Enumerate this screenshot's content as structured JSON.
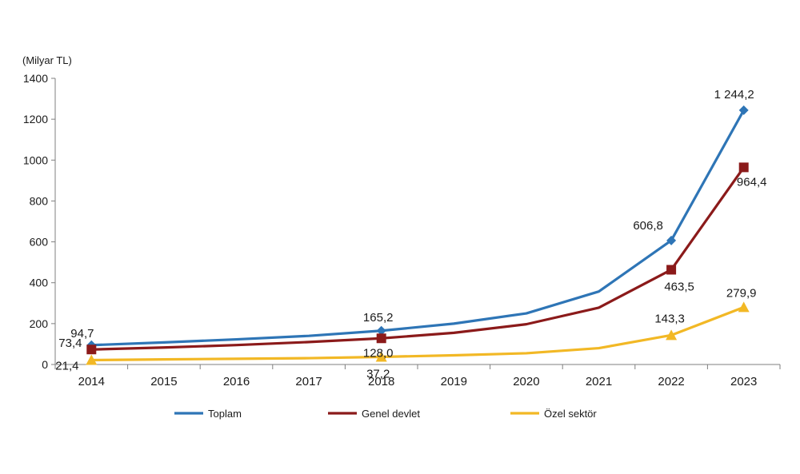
{
  "chart_data": {
    "type": "line",
    "title": "",
    "unit_label": "(Milyar  TL)",
    "xlabel": "",
    "ylabel": "",
    "x": [
      "2014",
      "2015",
      "2016",
      "2017",
      "2018",
      "2019",
      "2020",
      "2021",
      "2022",
      "2023"
    ],
    "ylim": [
      0,
      1400
    ],
    "yticks": [
      0,
      200,
      400,
      600,
      800,
      1000,
      1200,
      1400
    ],
    "grid": false,
    "legend_position": "bottom",
    "series": [
      {
        "name": "Toplam",
        "color": "#2e75b6",
        "marker": "diamond",
        "values": [
          94.7,
          108,
          123,
          140,
          165.2,
          200,
          250,
          357,
          606.8,
          1244.2
        ]
      },
      {
        "name": "Genel devlet",
        "color": "#8b1a1a",
        "marker": "square",
        "values": [
          73.4,
          83,
          95,
          110,
          128.0,
          155,
          197,
          278,
          463.5,
          964.4
        ]
      },
      {
        "name": "Özel sektör",
        "color": "#f2b825",
        "marker": "triangle",
        "values": [
          21.4,
          25,
          28,
          31,
          37.2,
          45,
          55,
          80,
          143.3,
          279.9
        ]
      }
    ],
    "data_labels": [
      {
        "series": 0,
        "index": 0,
        "text": "94,7"
      },
      {
        "series": 1,
        "index": 0,
        "text": "73,4"
      },
      {
        "series": 2,
        "index": 0,
        "text": "21,4"
      },
      {
        "series": 0,
        "index": 4,
        "text": "165,2"
      },
      {
        "series": 1,
        "index": 4,
        "text": "128,0"
      },
      {
        "series": 2,
        "index": 4,
        "text": "37,2"
      },
      {
        "series": 0,
        "index": 8,
        "text": "606,8"
      },
      {
        "series": 1,
        "index": 8,
        "text": "463,5"
      },
      {
        "series": 2,
        "index": 8,
        "text": "143,3"
      },
      {
        "series": 0,
        "index": 9,
        "text": "1 244,2"
      },
      {
        "series": 1,
        "index": 9,
        "text": "964,4"
      },
      {
        "series": 2,
        "index": 9,
        "text": "279,9"
      }
    ]
  }
}
